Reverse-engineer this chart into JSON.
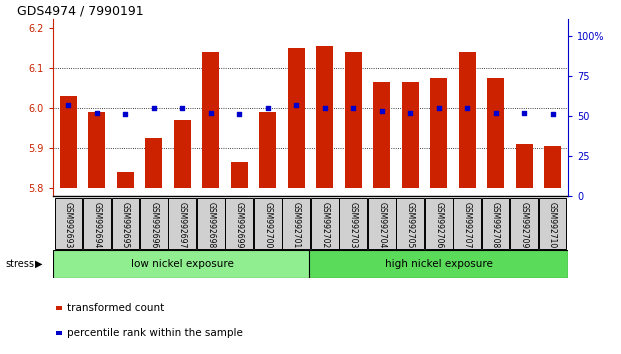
{
  "title": "GDS4974 / 7990191",
  "samples": [
    "GSM992693",
    "GSM992694",
    "GSM992695",
    "GSM992696",
    "GSM992697",
    "GSM992698",
    "GSM992699",
    "GSM992700",
    "GSM992701",
    "GSM992702",
    "GSM992703",
    "GSM992704",
    "GSM992705",
    "GSM992706",
    "GSM992707",
    "GSM992708",
    "GSM992709",
    "GSM992710"
  ],
  "transformed_count": [
    6.03,
    5.99,
    5.84,
    5.925,
    5.97,
    6.14,
    5.865,
    5.99,
    6.15,
    6.155,
    6.14,
    6.065,
    6.065,
    6.075,
    6.14,
    6.075,
    5.91,
    5.905
  ],
  "percentile_rank": [
    52,
    47,
    46,
    50,
    50,
    47,
    46,
    50,
    52,
    50,
    50,
    48,
    47,
    50,
    50,
    47,
    47,
    46
  ],
  "low_nickel_count": 9,
  "high_nickel_count": 9,
  "group_labels": [
    "low nickel exposure",
    "high nickel exposure"
  ],
  "low_color": "#90ee90",
  "high_color": "#5adc5a",
  "bar_color": "#cc2200",
  "dot_color": "#0000cc",
  "bar_bottom": 5.8,
  "left_ylim": [
    5.78,
    6.22
  ],
  "left_yticks": [
    5.8,
    5.9,
    6.0,
    6.1,
    6.2
  ],
  "right_ylim": [
    0,
    110
  ],
  "right_yticks": [
    0,
    25,
    50,
    75,
    100
  ],
  "right_yticklabels": [
    "0",
    "25",
    "50",
    "75",
    "100%"
  ],
  "grid_values": [
    5.9,
    6.0,
    6.1
  ],
  "title_fontsize": 9,
  "tick_fontsize": 7,
  "label_fontsize": 5.5,
  "group_fontsize": 7.5,
  "legend_fontsize": 7.5,
  "stress_label": "stress",
  "left_tick_color": "#cc2200",
  "right_tick_color": "#0000cc"
}
